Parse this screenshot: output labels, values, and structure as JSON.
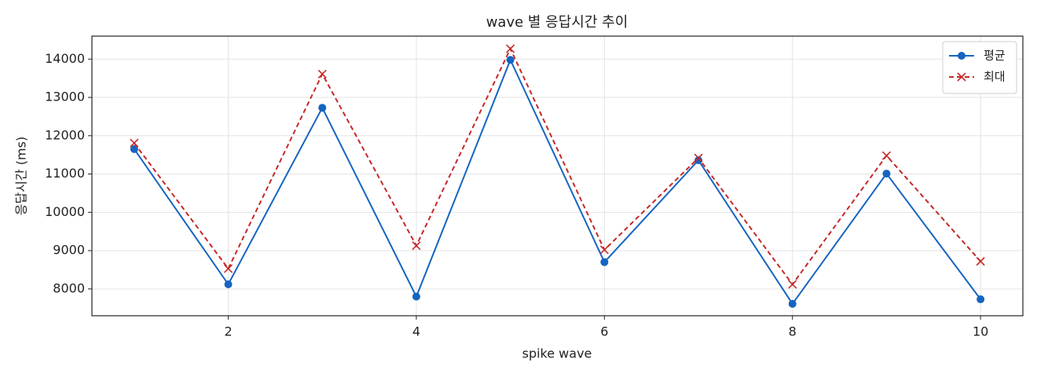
{
  "chart_data": {
    "type": "line",
    "title": "wave 별 응답시간 추이",
    "x_label": "spike wave",
    "y_label": "응답시간 (ms)",
    "x": [
      1,
      2,
      3,
      4,
      5,
      6,
      7,
      8,
      9,
      10
    ],
    "series": [
      {
        "name": "평균",
        "color": "#1565c0",
        "line_style": "solid",
        "marker": "o",
        "values": [
          11650,
          8120,
          12730,
          7800,
          13980,
          8700,
          11360,
          7610,
          11010,
          7730
        ]
      },
      {
        "name": "최대",
        "color": "#c62828",
        "line_style": "dashed",
        "marker": "x",
        "values": [
          11810,
          8530,
          13610,
          9130,
          14270,
          9020,
          11420,
          8120,
          11480,
          8720
        ]
      }
    ],
    "xlim": [
      0.55,
      10.45
    ],
    "xticks": [
      2,
      4,
      6,
      8,
      10
    ],
    "ylim": [
      7300,
      14600
    ],
    "yticks": [
      8000,
      9000,
      10000,
      11000,
      12000,
      13000,
      14000
    ],
    "grid": true,
    "legend": "upper-right"
  }
}
